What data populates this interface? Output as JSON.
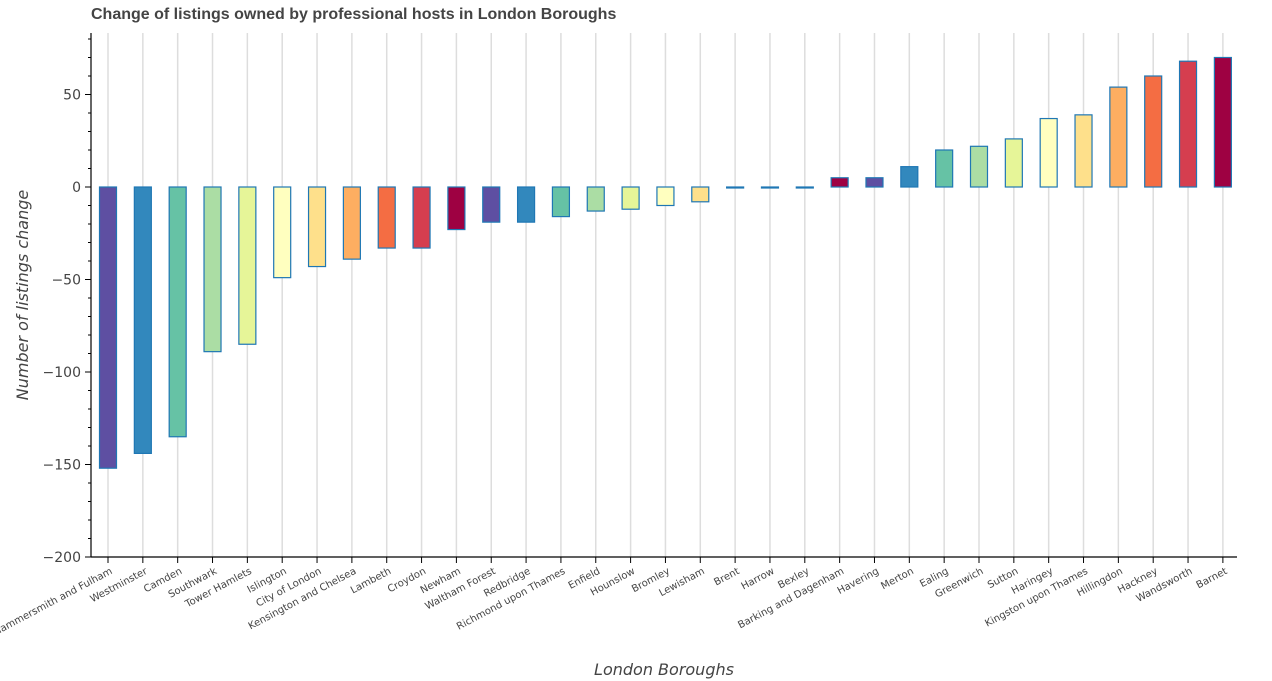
{
  "chart_data": {
    "type": "bar",
    "title": "Change of listings owned by professional hosts in London Boroughs",
    "xlabel": "London Boroughs",
    "ylabel": "Number of listings change",
    "ylim": [
      -200,
      85
    ],
    "yticks": [
      -200,
      -150,
      -100,
      -50,
      0,
      50
    ],
    "grid": "vertical",
    "categories": [
      "Hammersmith and Fulham",
      "Westminster",
      "Camden",
      "Southwark",
      "Tower Hamlets",
      "Islington",
      "City of London",
      "Kensington and Chelsea",
      "Lambeth",
      "Croydon",
      "Newham",
      "Waltham Forest",
      "Redbridge",
      "Richmond upon Thames",
      "Enfield",
      "Hounslow",
      "Bromley",
      "Lewisham",
      "Brent",
      "Harrow",
      "Bexley",
      "Barking and Dagenham",
      "Havering",
      "Merton",
      "Ealing",
      "Greenwich",
      "Sutton",
      "Haringey",
      "Kingston upon Thames",
      "Hillingdon",
      "Hackney",
      "Wandsworth",
      "Barnet"
    ],
    "values": [
      -152,
      -144,
      -135,
      -89,
      -85,
      -49,
      -43,
      -39,
      -33,
      -33,
      -23,
      -19,
      -19,
      -16,
      -13,
      -12,
      -10,
      -8,
      0,
      0,
      0,
      5,
      5,
      11,
      20,
      22,
      26,
      37,
      39,
      54,
      60,
      68,
      70
    ],
    "colors": [
      "#5e4fa2",
      "#3288bd",
      "#66c2a5",
      "#abdda4",
      "#e6f598",
      "#ffffbf",
      "#fee08b",
      "#fdae61",
      "#f46d43",
      "#d53e4f",
      "#9e0142",
      "#5e4fa2",
      "#3288bd",
      "#66c2a5",
      "#abdda4",
      "#e6f598",
      "#ffffbf",
      "#fee08b",
      "#fdae61",
      "#f46d43",
      "#d53e4f",
      "#9e0142",
      "#5e4fa2",
      "#3288bd",
      "#66c2a5",
      "#abdda4",
      "#e6f598",
      "#ffffbf",
      "#fee08b",
      "#fdae61",
      "#f46d43",
      "#d53e4f",
      "#9e0142"
    ],
    "bar_outline_color": "#1f77b4"
  }
}
